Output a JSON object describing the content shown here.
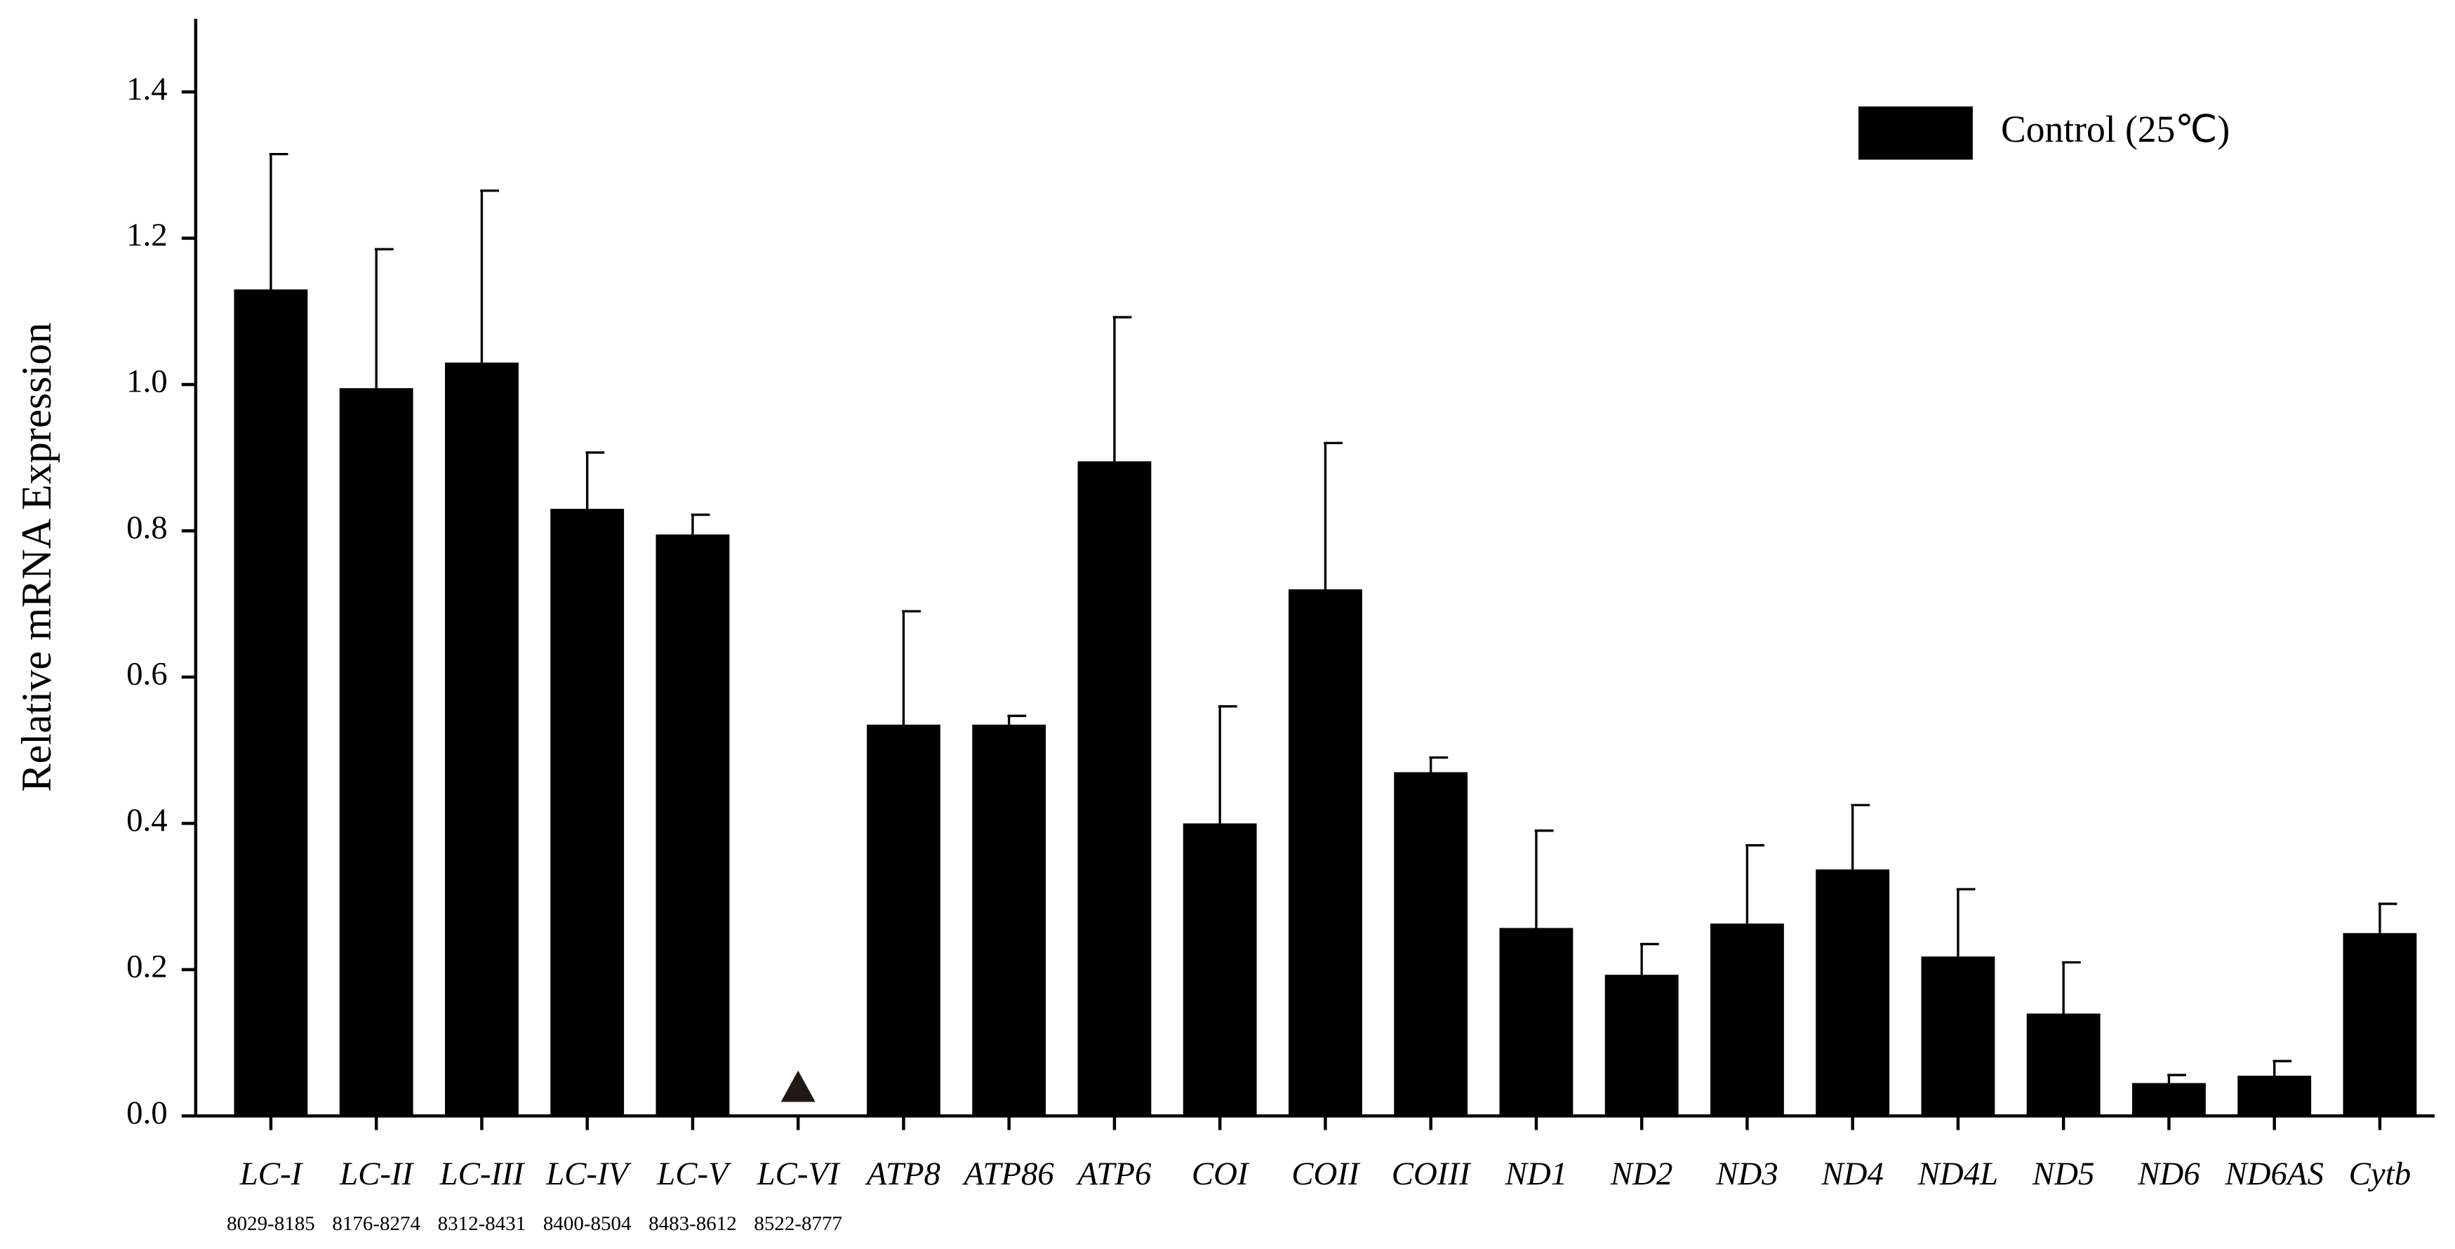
{
  "chart_data": {
    "type": "bar",
    "y_label": "Relative mRNA Expression",
    "categories": [
      "LC-I",
      "LC-II",
      "LC-III",
      "LC-IV",
      "LC-V",
      "LC-VI",
      "ATP8",
      "ATP86",
      "ATP6",
      "COI",
      "COII",
      "COIII",
      "ND1",
      "ND2",
      "ND3",
      "ND4",
      "ND4L",
      "ND5",
      "ND6",
      "ND6AS",
      "Cytb"
    ],
    "sublabels": [
      "8029-8185",
      "8176-8274",
      "8312-8431",
      "8400-8504",
      "8483-8612",
      "8522-8777",
      null,
      null,
      null,
      null,
      null,
      null,
      null,
      null,
      null,
      null,
      null,
      null,
      null,
      null,
      null
    ],
    "series": [
      {
        "name": "Control (25℃)",
        "color": "#000000",
        "values": [
          1.13,
          0.995,
          1.03,
          0.83,
          0.795,
          null,
          0.535,
          0.535,
          0.895,
          0.4,
          0.72,
          0.47,
          0.257,
          0.193,
          0.263,
          0.337,
          0.218,
          0.14,
          0.045,
          0.055,
          0.25
        ],
        "errors": [
          0.185,
          0.19,
          0.235,
          0.077,
          0.027,
          null,
          0.155,
          0.012,
          0.197,
          0.16,
          0.2,
          0.02,
          0.133,
          0.042,
          0.107,
          0.088,
          0.092,
          0.07,
          0.011,
          0.02,
          0.04
        ]
      }
    ],
    "ylim": [
      0,
      1.5
    ],
    "yticks": [
      {
        "value": 0,
        "label": "0.0"
      },
      0.2,
      0.4,
      0.6,
      0.8,
      {
        "value": 1,
        "label": "1.0"
      },
      1.2,
      1.4
    ],
    "legend": "upper right",
    "grid": false
  }
}
